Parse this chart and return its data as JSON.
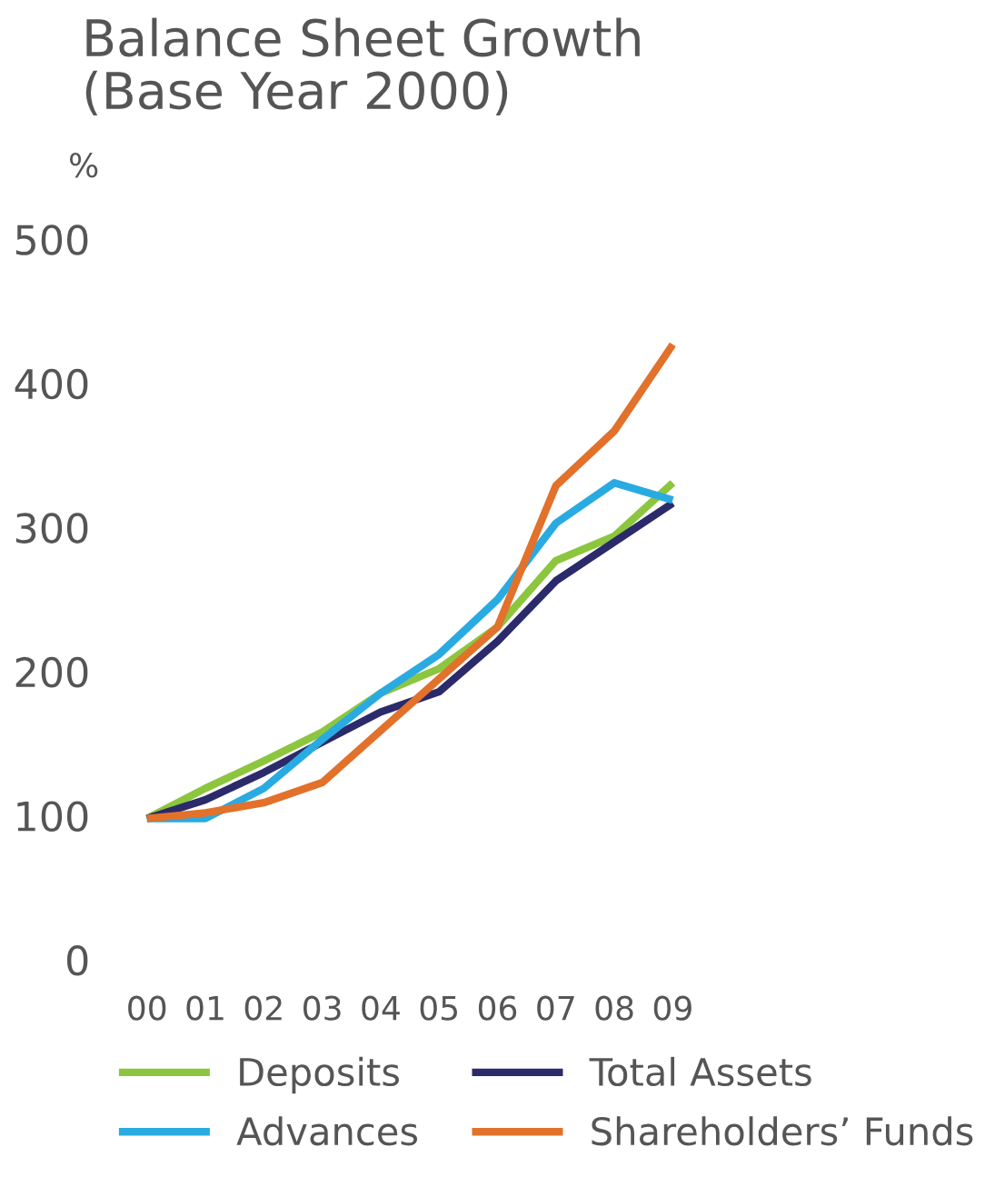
{
  "chart_data": {
    "type": "line",
    "title": "Balance Sheet Growth\n(Base Year 2000)",
    "ylabel": "%",
    "categories": [
      "00",
      "01",
      "02",
      "03",
      "04",
      "05",
      "06",
      "07",
      "08",
      "09"
    ],
    "series": [
      {
        "name": "Deposits",
        "color": "#8cc63f",
        "values": [
          98,
          119,
          138,
          158,
          185,
          202,
          231,
          277,
          294,
          331
        ]
      },
      {
        "name": "Total Assets",
        "color": "#2b2a6b",
        "values": [
          98,
          111,
          130,
          151,
          172,
          186,
          221,
          263,
          290,
          317
        ]
      },
      {
        "name": "Advances",
        "color": "#29abe2",
        "values": [
          98,
          98,
          119,
          153,
          185,
          212,
          250,
          303,
          331,
          319
        ]
      },
      {
        "name": "Shareholders’ Funds",
        "color": "#e2712b",
        "values": [
          98,
          102,
          109,
          123,
          159,
          195,
          231,
          329,
          367,
          427
        ]
      }
    ],
    "ylim": [
      0,
      500
    ],
    "yticks": [
      0,
      100,
      200,
      300,
      400,
      500
    ],
    "grid": false,
    "legend": "bottom",
    "marker": "none",
    "line_style": "solid"
  }
}
